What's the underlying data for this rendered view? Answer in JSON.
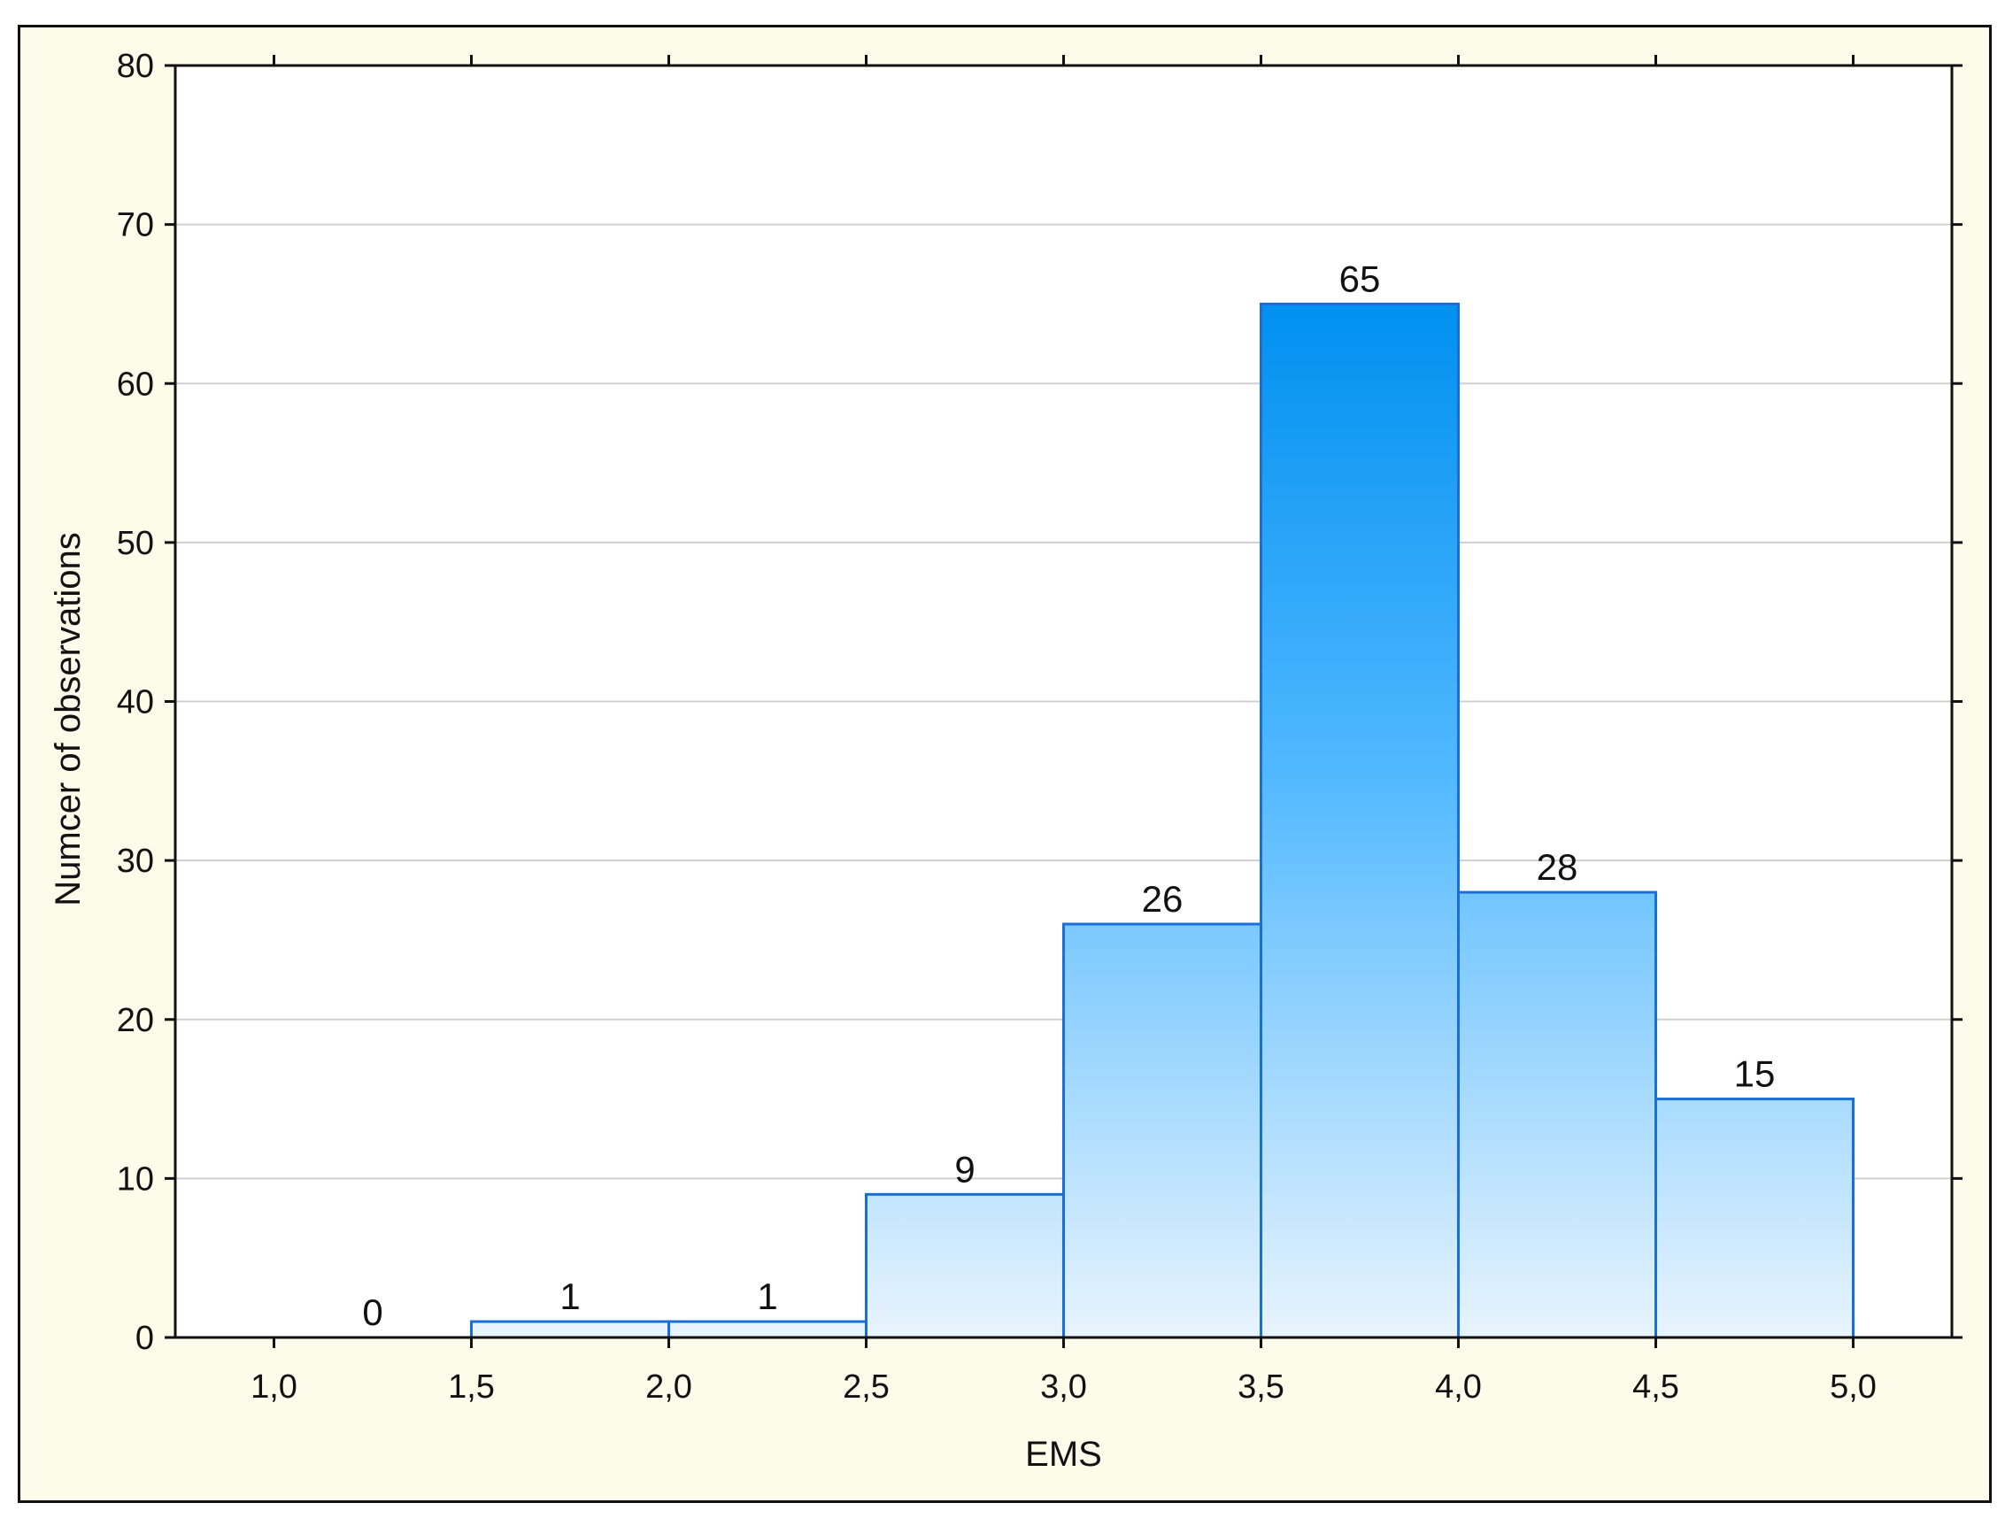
{
  "chart_data": {
    "type": "bar",
    "histogram": true,
    "bins": [
      [
        1.0,
        1.5
      ],
      [
        1.5,
        2.0
      ],
      [
        2.0,
        2.5
      ],
      [
        2.5,
        3.0
      ],
      [
        3.0,
        3.5
      ],
      [
        3.5,
        4.0
      ],
      [
        4.0,
        4.5
      ],
      [
        4.5,
        5.0
      ]
    ],
    "values": [
      0,
      1,
      1,
      9,
      26,
      65,
      28,
      15
    ],
    "data_labels": [
      "0",
      "1",
      "1",
      "9",
      "26",
      "65",
      "28",
      "15"
    ],
    "xlabel": "EMS",
    "ylabel": "Numcer of observations",
    "x_ticks": [
      1.0,
      1.5,
      2.0,
      2.5,
      3.0,
      3.5,
      4.0,
      4.5,
      5.0
    ],
    "x_tick_labels": [
      "1,0",
      "1,5",
      "2,0",
      "2,5",
      "3,0",
      "3,5",
      "4,0",
      "4,5",
      "5,0"
    ],
    "y_ticks": [
      0,
      10,
      20,
      30,
      40,
      50,
      60,
      70,
      80
    ],
    "y_tick_labels": [
      "0",
      "10",
      "20",
      "30",
      "40",
      "50",
      "60",
      "70",
      "80"
    ],
    "xlim": [
      0.75,
      5.25
    ],
    "ylim": [
      0,
      80
    ],
    "grid": "horizontal",
    "colors": {
      "bar_top": "#0090f0",
      "bar_mid": "#50b8ff",
      "bar_bottom": "#e8f4fd",
      "bar_edge": "#1a6fd6",
      "frame_bg": "#fdfbe9",
      "plot_bg": "#ffffff",
      "grid": "#d0d0d0"
    }
  }
}
